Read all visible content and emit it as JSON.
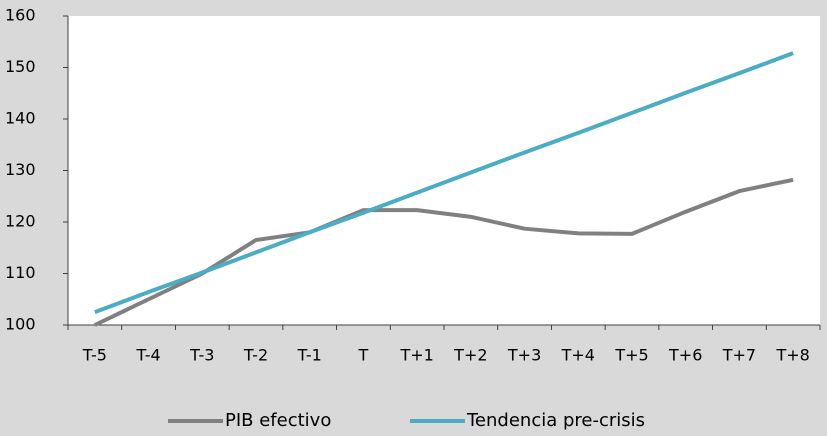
{
  "chart_data": {
    "type": "line",
    "categories": [
      "T-5",
      "T-4",
      "T-3",
      "T-2",
      "T-1",
      "T",
      "T+1",
      "T+2",
      "T+3",
      "T+4",
      "T+5",
      "T+6",
      "T+7",
      "T+8"
    ],
    "series": [
      {
        "name": "PIB efectivo",
        "color": "#808080",
        "values": [
          100,
          105,
          110,
          116.5,
          118,
          122.3,
          122.3,
          121,
          118.7,
          117.8,
          117.7,
          122,
          126,
          128.2
        ]
      },
      {
        "name": "Tendencia pre-crisis",
        "color": "#4bacc6",
        "values": [
          102.5,
          106.4,
          110.2,
          114.1,
          118,
          121.8,
          125.7,
          129.6,
          133.5,
          137.3,
          141.2,
          145.1,
          148.9,
          152.8
        ]
      }
    ],
    "ylim": [
      100,
      160
    ],
    "yticks": [
      100,
      110,
      120,
      130,
      140,
      150,
      160
    ]
  }
}
